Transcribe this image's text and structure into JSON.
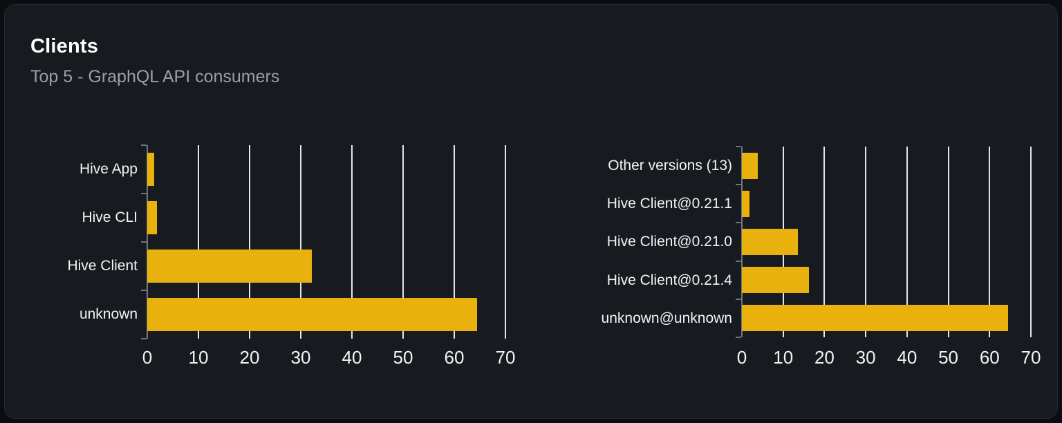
{
  "card": {
    "title": "Clients",
    "subtitle": "Top 5 - GraphQL API consumers"
  },
  "colors": {
    "bar": "#e9b10e",
    "gridline": "#e3e6ea",
    "axis": "#71757e",
    "category_label": "#f2f3f5",
    "tick_label": "#f2f3f5",
    "title": "#ffffff",
    "subtitle": "#98a0ab",
    "card_background": "#171a1f",
    "page_background": "#0c0d10",
    "card_border": "#262932"
  },
  "chart_data": [
    {
      "type": "bar",
      "orientation": "horizontal",
      "name": "clients-by-name",
      "categories": [
        "Hive App",
        "Hive CLI",
        "Hive Client",
        "unknown"
      ],
      "values": [
        1.4,
        1.9,
        32.2,
        64.5
      ],
      "xlim": [
        0,
        70
      ],
      "xticks": [
        0,
        10,
        20,
        30,
        40,
        50,
        60,
        70
      ],
      "grid": "vertical",
      "legend": "none",
      "title": ""
    },
    {
      "type": "bar",
      "orientation": "horizontal",
      "name": "clients-by-version",
      "categories": [
        "Other versions (13)",
        "Hive Client@0.21.1",
        "Hive Client@0.21.0",
        "Hive Client@0.21.4",
        "unknown@unknown"
      ],
      "values": [
        3.9,
        1.8,
        13.6,
        16.3,
        64.4
      ],
      "xlim": [
        0,
        70
      ],
      "xticks": [
        0,
        10,
        20,
        30,
        40,
        50,
        60,
        70
      ],
      "grid": "vertical",
      "legend": "none",
      "title": ""
    }
  ]
}
